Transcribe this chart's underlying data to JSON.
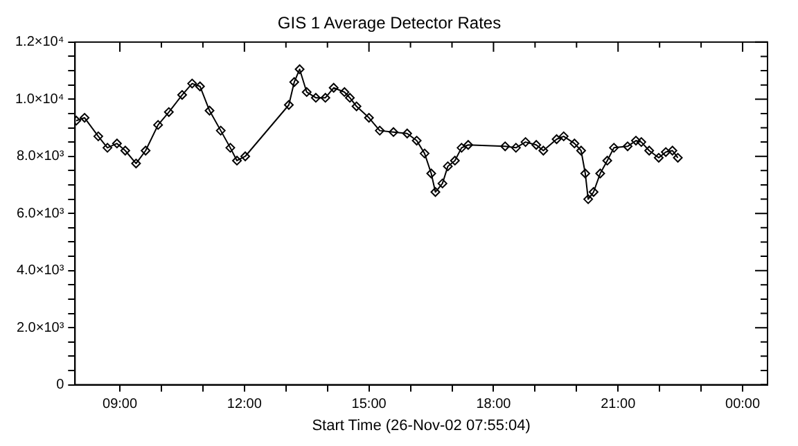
{
  "chart_data": {
    "type": "line",
    "title": "GIS 1 Average Detector Rates",
    "xlabel": "Start Time (26-Nov-02 07:55:04)",
    "x": [
      7.95,
      8.15,
      8.48,
      8.7,
      8.93,
      9.13,
      9.39,
      9.62,
      9.92,
      10.18,
      10.5,
      10.74,
      10.93,
      11.16,
      11.43,
      11.66,
      11.82,
      12.02,
      13.07,
      13.2,
      13.33,
      13.5,
      13.72,
      13.95,
      14.15,
      14.41,
      14.54,
      14.7,
      15.0,
      15.26,
      15.59,
      15.92,
      16.15,
      16.34,
      16.5,
      16.6,
      16.77,
      16.9,
      17.07,
      17.23,
      17.39,
      18.28,
      18.54,
      18.77,
      19.03,
      19.2,
      19.52,
      19.69,
      19.95,
      20.11,
      20.21,
      20.28,
      20.41,
      20.57,
      20.74,
      20.9,
      21.23,
      21.43,
      21.56,
      21.75,
      21.98,
      22.15,
      22.31,
      22.44
    ],
    "series": [
      {
        "color": "#000000",
        "values": [
          9250,
          9350,
          8700,
          8300,
          8450,
          8200,
          7750,
          8200,
          9100,
          9550,
          10150,
          10550,
          10450,
          9600,
          8900,
          8300,
          7850,
          8000,
          9800,
          10600,
          11050,
          10250,
          10050,
          10050,
          10400,
          10250,
          10050,
          9750,
          9350,
          8900,
          8850,
          8800,
          8550,
          8100,
          7400,
          6750,
          7050,
          7650,
          7850,
          8300,
          8400,
          8350,
          8300,
          8500,
          8400,
          8200,
          8600,
          8700,
          8450,
          8200,
          7400,
          6500,
          6750,
          7400,
          7850,
          8300,
          8350,
          8550,
          8500,
          8200,
          7950,
          8150,
          8200,
          7950
        ]
      }
    ],
    "xlim": [
      7.92,
      24.6
    ],
    "xticks": [
      {
        "value": 9,
        "label": "09:00"
      },
      {
        "value": 10,
        "label": null
      },
      {
        "value": 11,
        "label": null
      },
      {
        "value": 12,
        "label": "12:00"
      },
      {
        "value": 13,
        "label": null
      },
      {
        "value": 14,
        "label": null
      },
      {
        "value": 15,
        "label": "15:00"
      },
      {
        "value": 16,
        "label": null
      },
      {
        "value": 17,
        "label": null
      },
      {
        "value": 18,
        "label": "18:00"
      },
      {
        "value": 19,
        "label": null
      },
      {
        "value": 20,
        "label": null
      },
      {
        "value": 21,
        "label": "21:00"
      },
      {
        "value": 22,
        "label": null
      },
      {
        "value": 23,
        "label": null
      },
      {
        "value": 24,
        "label": "00:00"
      }
    ],
    "ylim": [
      0,
      12000
    ],
    "yticks": [
      0,
      {
        "value": 500,
        "label": null
      },
      {
        "value": 1000,
        "label": null
      },
      {
        "value": 1500,
        "label": null
      },
      {
        "value": 2000,
        "label": "2.0×10³"
      },
      {
        "value": 2500,
        "label": null
      },
      {
        "value": 3000,
        "label": null
      },
      {
        "value": 3500,
        "label": null
      },
      {
        "value": 4000,
        "label": "4.0×10³"
      },
      {
        "value": 4500,
        "label": null
      },
      {
        "value": 5000,
        "label": null
      },
      {
        "value": 5500,
        "label": null
      },
      {
        "value": 6000,
        "label": "6.0×10³"
      },
      {
        "value": 6500,
        "label": null
      },
      {
        "value": 7000,
        "label": null
      },
      {
        "value": 7500,
        "label": null
      },
      {
        "value": 8000,
        "label": "8.0×10³"
      },
      {
        "value": 8500,
        "label": null
      },
      {
        "value": 9000,
        "label": null
      },
      {
        "value": 9500,
        "label": null
      },
      {
        "value": 10000,
        "label": "1.0×10⁴"
      },
      {
        "value": 10500,
        "label": null
      },
      {
        "value": 11000,
        "label": null
      },
      {
        "value": 11500,
        "label": null
      },
      {
        "value": 12000,
        "label": "1.2×10⁴"
      }
    ],
    "marker": "diamond",
    "line_style": "solid",
    "grid": false,
    "legend": false
  }
}
